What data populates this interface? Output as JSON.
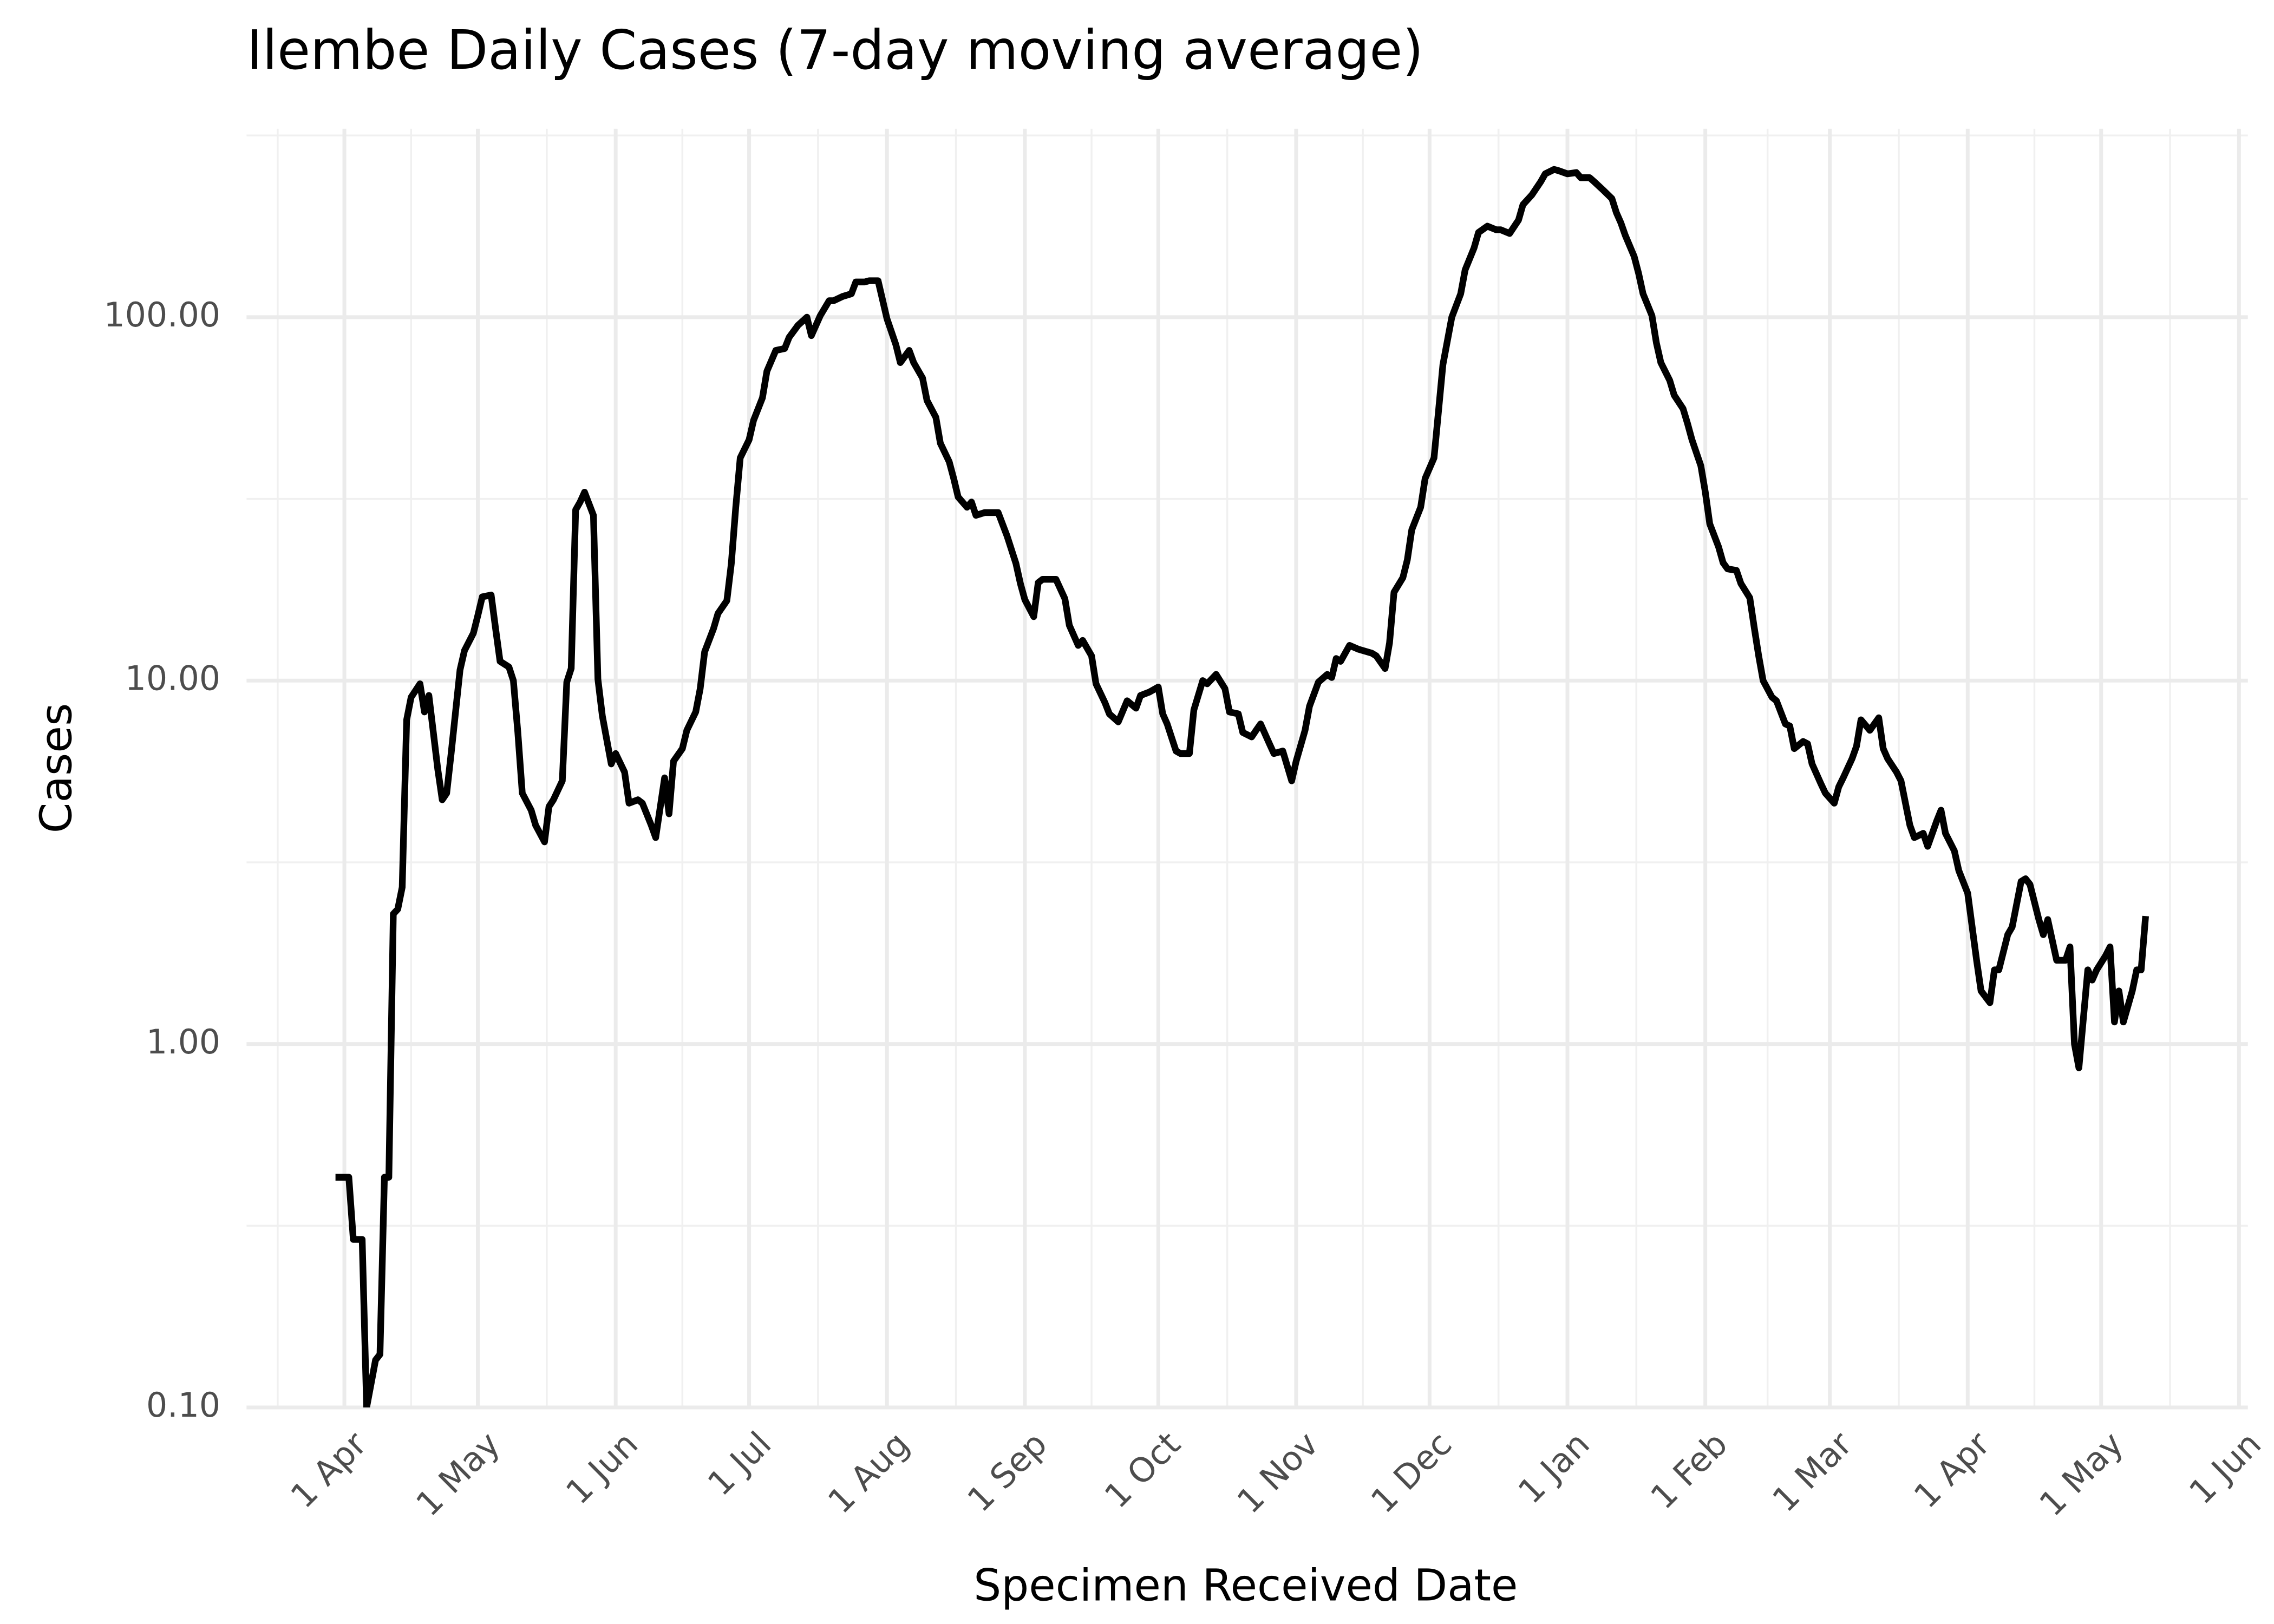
{
  "chart_data": {
    "type": "line",
    "title": "Ilembe Daily Cases (7-day moving average)",
    "x_label": "Specimen Received Date",
    "y_label": "Cases",
    "log_y": true,
    "grid": true,
    "color": "#000000",
    "xlim": [
      -22,
      428
    ],
    "ylim": [
      0.1,
      330
    ],
    "xticks": [
      {
        "value": 0,
        "label": "1 Apr"
      },
      {
        "value": 30,
        "label": "1 May"
      },
      {
        "value": 61,
        "label": "1 Jun"
      },
      {
        "value": 91,
        "label": "1 Jul"
      },
      {
        "value": 122,
        "label": "1 Aug"
      },
      {
        "value": 153,
        "label": "1 Sep"
      },
      {
        "value": 183,
        "label": "1 Oct"
      },
      {
        "value": 214,
        "label": "1 Nov"
      },
      {
        "value": 244,
        "label": "1 Dec"
      },
      {
        "value": 275,
        "label": "1 Jan"
      },
      {
        "value": 306,
        "label": "1 Feb"
      },
      {
        "value": 334,
        "label": "1 Mar"
      },
      {
        "value": 365,
        "label": "1 Apr"
      },
      {
        "value": 395,
        "label": "1 May"
      },
      {
        "value": 426,
        "label": "1 Jun"
      }
    ],
    "yticks": [
      {
        "value": 0.1,
        "label": "0.10"
      },
      {
        "value": 1,
        "label": "1.00"
      },
      {
        "value": 10,
        "label": "10.00"
      },
      {
        "value": 100,
        "label": "100.00"
      }
    ],
    "x": [
      -2,
      1,
      2,
      4,
      5,
      7,
      8,
      9,
      10,
      11,
      12,
      13,
      14,
      15,
      17,
      18,
      19,
      21,
      22,
      23,
      24,
      26,
      27,
      29,
      30,
      31,
      33,
      34,
      35,
      37,
      38,
      39,
      40,
      42,
      43,
      45,
      46,
      47,
      49,
      50,
      51,
      52,
      53,
      54,
      56,
      57,
      58,
      60,
      61,
      63,
      64,
      66,
      67,
      69,
      70,
      72,
      73,
      74,
      76,
      77,
      79,
      80,
      81,
      83,
      84,
      86,
      87,
      88,
      89,
      91,
      92,
      94,
      95,
      97,
      99,
      100,
      102,
      104,
      105,
      107,
      109,
      110,
      112,
      114,
      115,
      117,
      118,
      120,
      122,
      124,
      125,
      127,
      128,
      130,
      131,
      133,
      134,
      136,
      137,
      138,
      140,
      141,
      142,
      144,
      147,
      149,
      151,
      152,
      153,
      155,
      156,
      157,
      160,
      162,
      163,
      165,
      166,
      168,
      169,
      171,
      172,
      174,
      176,
      178,
      179,
      181,
      183,
      184,
      185,
      187,
      188,
      190,
      191,
      193,
      194,
      196,
      198,
      199,
      201,
      202,
      204,
      205,
      206,
      208,
      209,
      211,
      213,
      214,
      216,
      217,
      219,
      221,
      222,
      223,
      224,
      226,
      228,
      231,
      232,
      234,
      235,
      236,
      238,
      239,
      240,
      242,
      243,
      245,
      246,
      247,
      249,
      251,
      252,
      254,
      255,
      257,
      259,
      260,
      262,
      264,
      265,
      267,
      269,
      270,
      272,
      273,
      275,
      277,
      278,
      280,
      281,
      283,
      285,
      286,
      287,
      288,
      290,
      291,
      292,
      294,
      295,
      296,
      298,
      299,
      301,
      302,
      303,
      305,
      306,
      307,
      309,
      310,
      311,
      313,
      314,
      316,
      317,
      318,
      319,
      321,
      322,
      324,
      325,
      326,
      328,
      329,
      330,
      332,
      333,
      335,
      336,
      337,
      339,
      340,
      341,
      343,
      345,
      346,
      347,
      349,
      350,
      352,
      353,
      355,
      356,
      358,
      359,
      360,
      362,
      363,
      365,
      366,
      367,
      368,
      370,
      371,
      372,
      374,
      375,
      377,
      378,
      379,
      381,
      382,
      383,
      385,
      387,
      388,
      389,
      390,
      392,
      393,
      394,
      396,
      397,
      398,
      399,
      400,
      402,
      403,
      404,
      405
    ],
    "values": [
      0.43,
      0.43,
      0.29,
      0.29,
      0.1,
      0.135,
      0.14,
      0.43,
      0.43,
      2.28,
      2.35,
      2.7,
      7.8,
      9.0,
      9.8,
      8.2,
      9.1,
      5.7,
      4.7,
      4.9,
      6.3,
      10.7,
      12.1,
      13.5,
      15.1,
      17.0,
      17.2,
      13.9,
      11.3,
      10.9,
      10.0,
      7.2,
      4.9,
      4.4,
      4.0,
      3.6,
      4.5,
      4.7,
      5.3,
      9.9,
      10.8,
      29.5,
      31,
      33,
      28.5,
      10.1,
      8.0,
      5.9,
      6.3,
      5.6,
      4.6,
      4.7,
      4.6,
      4.0,
      3.7,
      5.4,
      4.3,
      6.0,
      6.5,
      7.3,
      8.2,
      9.5,
      12.0,
      13.9,
      15.3,
      16.6,
      21,
      30,
      41,
      46,
      52,
      60,
      71,
      81,
      82,
      88,
      95,
      100,
      89,
      101,
      111,
      111,
      114,
      116,
      125,
      125,
      126,
      126,
      99,
      84,
      75,
      81,
      75,
      68,
      59,
      53,
      45,
      40,
      36,
      32,
      30,
      31,
      28.5,
      29,
      29,
      25,
      21,
      18.5,
      16.7,
      15,
      18.6,
      19,
      19,
      16.8,
      14.2,
      12.5,
      12.9,
      11.7,
      9.8,
      8.7,
      8.1,
      7.7,
      8.8,
      8.4,
      9.1,
      9.3,
      9.6,
      8.1,
      7.6,
      6.4,
      6.3,
      6.3,
      8.3,
      10.0,
      9.8,
      10.4,
      9.5,
      8.2,
      8.1,
      7.2,
      7.0,
      7.3,
      7.6,
      6.7,
      6.3,
      6.4,
      5.3,
      6.0,
      7.3,
      8.5,
      9.9,
      10.4,
      10.2,
      11.5,
      11.3,
      12.5,
      12.2,
      11.9,
      11.7,
      10.8,
      12.7,
      17.5,
      19.2,
      21.5,
      26,
      30,
      36,
      41,
      55,
      74,
      100,
      116,
      135,
      155,
      171,
      178,
      174,
      174,
      170,
      185,
      204,
      217,
      236,
      248,
      255,
      253,
      248,
      250,
      242,
      242,
      236,
      224,
      212,
      194,
      182,
      168,
      147,
      132,
      116,
      101,
      85,
      75,
      67,
      61,
      56,
      51,
      46,
      39,
      33,
      27,
      23.3,
      21.1,
      20.3,
      20.1,
      18.5,
      16.9,
      14.0,
      11.7,
      10.0,
      9.0,
      8.8,
      7.6,
      7.5,
      6.5,
      6.8,
      6.7,
      5.9,
      5.2,
      4.9,
      4.6,
      5.1,
      5.4,
      6.1,
      6.6,
      7.8,
      7.3,
      7.9,
      6.5,
      6.1,
      5.6,
      5.3,
      4.0,
      3.7,
      3.8,
      3.5,
      4.1,
      4.4,
      3.8,
      3.4,
      3.0,
      2.6,
      2.1,
      1.7,
      1.4,
      1.3,
      1.6,
      1.6,
      2.0,
      2.1,
      2.8,
      2.85,
      2.75,
      2.2,
      2.0,
      2.2,
      1.7,
      1.7,
      1.85,
      1.0,
      0.86,
      1.6,
      1.5,
      1.6,
      1.75,
      1.85,
      1.15,
      1.4,
      1.15,
      1.4,
      1.6,
      1.6,
      2.25
    ]
  }
}
